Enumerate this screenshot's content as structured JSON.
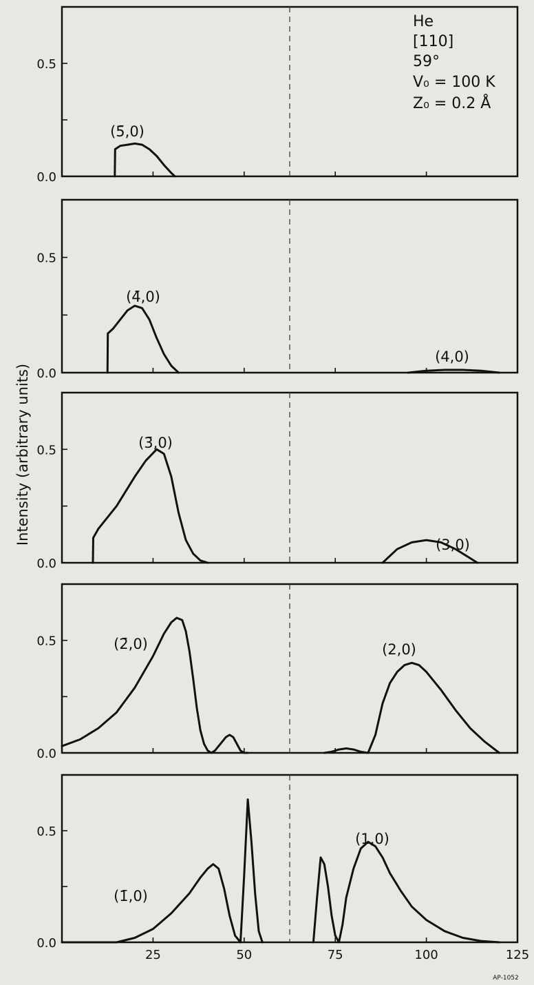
{
  "figure": {
    "ylabel": "Intensity (arbitrary units)",
    "annotation_lines": [
      "He",
      "[110]",
      "59°",
      "V₀ = 100 K",
      "Z₀ = 0.2 Å"
    ],
    "footnote": "AP-1052",
    "dashed_line_x": 62.5
  },
  "chart_data": [
    {
      "type": "line",
      "panel": 1,
      "xlim": [
        0,
        125
      ],
      "ylim": [
        0,
        0.75
      ],
      "yticks": [
        "0.5",
        "0.0"
      ],
      "grid": false,
      "series": [
        {
          "name": "(5̄,0)",
          "x": [
            14.5,
            14.6,
            16,
            18,
            20,
            22,
            24,
            26,
            28,
            30,
            31
          ],
          "y": [
            0,
            0.12,
            0.135,
            0.14,
            0.145,
            0.14,
            0.12,
            0.09,
            0.05,
            0.015,
            0
          ]
        }
      ]
    },
    {
      "type": "line",
      "panel": 2,
      "xlim": [
        0,
        125
      ],
      "ylim": [
        0,
        0.75
      ],
      "yticks": [
        "0.5",
        "0.0"
      ],
      "grid": false,
      "series": [
        {
          "name": "(4̄,0)",
          "x": [
            12.5,
            12.6,
            14,
            16,
            18,
            20,
            22,
            24,
            26,
            28,
            30,
            32
          ],
          "y": [
            0,
            0.17,
            0.19,
            0.23,
            0.27,
            0.29,
            0.28,
            0.23,
            0.15,
            0.08,
            0.03,
            0
          ]
        },
        {
          "name": "(4,0)",
          "x": [
            95,
            100,
            105,
            110,
            115,
            120
          ],
          "y": [
            0,
            0.008,
            0.012,
            0.012,
            0.008,
            0
          ]
        }
      ]
    },
    {
      "type": "line",
      "panel": 3,
      "xlim": [
        0,
        125
      ],
      "ylim": [
        0,
        0.75
      ],
      "yticks": [
        "0.5",
        "0.0"
      ],
      "grid": false,
      "series": [
        {
          "name": "(3̄,0)",
          "x": [
            8.5,
            8.6,
            10,
            15,
            20,
            23,
            26,
            28,
            30,
            32,
            34,
            36,
            38,
            40
          ],
          "y": [
            0,
            0.11,
            0.15,
            0.25,
            0.38,
            0.45,
            0.5,
            0.48,
            0.38,
            0.22,
            0.1,
            0.04,
            0.01,
            0
          ]
        },
        {
          "name": "(3,0)",
          "x": [
            88,
            92,
            96,
            100,
            104,
            108,
            112,
            114
          ],
          "y": [
            0,
            0.06,
            0.09,
            0.1,
            0.09,
            0.06,
            0.02,
            0
          ]
        }
      ]
    },
    {
      "type": "line",
      "panel": 4,
      "xlim": [
        0,
        125
      ],
      "ylim": [
        0,
        0.75
      ],
      "yticks": [
        "0.5",
        "0.0"
      ],
      "grid": false,
      "series": [
        {
          "name": "(2̄,0)",
          "x": [
            0,
            5,
            10,
            15,
            20,
            25,
            28,
            30,
            31.5,
            33,
            34,
            35,
            36,
            37,
            38,
            39,
            40,
            41,
            42,
            43,
            44,
            45,
            46,
            47,
            48,
            49,
            50,
            51
          ],
          "y": [
            0.03,
            0.06,
            0.11,
            0.18,
            0.29,
            0.43,
            0.53,
            0.58,
            0.6,
            0.59,
            0.54,
            0.45,
            0.33,
            0.2,
            0.1,
            0.04,
            0.01,
            0,
            0.01,
            0.03,
            0.05,
            0.07,
            0.08,
            0.07,
            0.04,
            0.01,
            0,
            0
          ]
        },
        {
          "name": "(2,0)",
          "x": [
            72,
            74,
            76,
            78,
            80,
            82,
            84,
            86,
            88,
            90,
            92,
            94,
            96,
            98,
            100,
            104,
            108,
            112,
            116,
            120
          ],
          "y": [
            0,
            0.005,
            0.015,
            0.02,
            0.015,
            0.005,
            0,
            0.08,
            0.22,
            0.31,
            0.36,
            0.39,
            0.4,
            0.39,
            0.36,
            0.28,
            0.19,
            0.11,
            0.05,
            0
          ]
        }
      ]
    },
    {
      "type": "line",
      "panel": 5,
      "xlim": [
        0,
        125
      ],
      "ylim": [
        0,
        0.75
      ],
      "yticks": [
        "0.5",
        "0.0"
      ],
      "xticks": [
        "25",
        "50",
        "75",
        "100",
        "125"
      ],
      "grid": false,
      "series": [
        {
          "name": "(1̄,0)",
          "x": [
            0,
            15,
            20,
            25,
            30,
            35,
            38,
            40,
            41.5,
            43,
            44.5,
            46,
            47.5,
            49,
            50,
            51,
            52,
            53,
            54,
            55
          ],
          "y": [
            0,
            0,
            0.02,
            0.06,
            0.13,
            0.22,
            0.29,
            0.33,
            0.35,
            0.33,
            0.24,
            0.12,
            0.03,
            0,
            0.3,
            0.64,
            0.45,
            0.22,
            0.05,
            0
          ]
        },
        {
          "name": "(1,0)",
          "x": [
            69,
            70,
            71,
            72,
            73,
            74,
            75,
            76,
            77,
            78,
            80,
            82,
            84,
            86,
            88,
            90,
            93,
            96,
            100,
            105,
            110,
            115,
            120
          ],
          "y": [
            0,
            0.2,
            0.38,
            0.35,
            0.25,
            0.12,
            0.03,
            0,
            0.08,
            0.2,
            0.33,
            0.42,
            0.45,
            0.43,
            0.38,
            0.31,
            0.23,
            0.16,
            0.1,
            0.05,
            0.02,
            0.006,
            0
          ]
        }
      ]
    }
  ]
}
